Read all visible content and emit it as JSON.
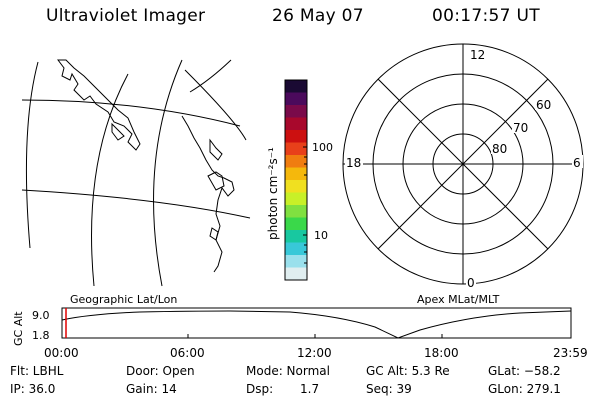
{
  "header": {
    "title": "Ultraviolet Imager",
    "date": "26 May 07",
    "time": "00:17:57 UT"
  },
  "colorbar": {
    "unit_label": "photon cm⁻²s⁻¹",
    "ticks": [
      "100",
      "10"
    ],
    "colors": [
      "#1a0a33",
      "#4b0a5c",
      "#7a0a4a",
      "#a8082c",
      "#cc1010",
      "#e8401a",
      "#f07d10",
      "#f5b80c",
      "#f0e020",
      "#c8f028",
      "#80e040",
      "#3ad84a",
      "#18c8a0",
      "#38c8d8",
      "#9ae0ec",
      "#e0eef0"
    ]
  },
  "polar": {
    "mlt_labels": {
      "top": "12",
      "bottom": "0",
      "left": "18",
      "right": "6"
    },
    "lat_labels": [
      "60",
      "70",
      "80"
    ]
  },
  "map": {
    "label": "Geographic Lat/Lon"
  },
  "polar_caption": "Apex MLat/MLT",
  "altitude_panel": {
    "axis_label": "GC Alt",
    "y_ticks": [
      "9.0",
      "1.8"
    ],
    "x_ticks": [
      "00:00",
      "06:00",
      "12:00",
      "18:00",
      "23:59"
    ]
  },
  "status": {
    "row1": {
      "flt": "Flt: LBHL",
      "door": "Door: Open",
      "mode": "Mode: Normal",
      "gc_alt": "GC Alt: 5.3 Re",
      "glat": "GLat: −58.2"
    },
    "row2": {
      "ip": "IP: 36.0",
      "gain": "Gain: 14",
      "dsp_label": "Dsp:",
      "dsp_value": "1.7",
      "seq": "Seq: 39",
      "glon": "GLon: 279.1"
    }
  }
}
